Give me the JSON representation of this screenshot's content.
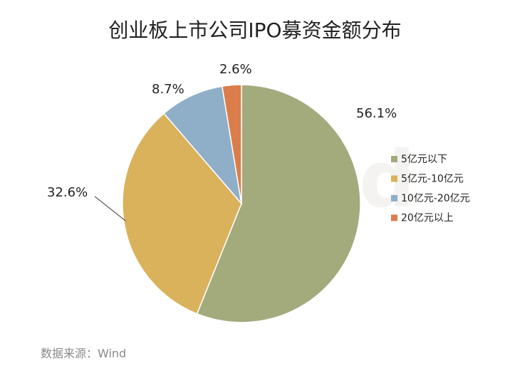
{
  "chart_data": {
    "type": "pie",
    "title": "创业板上市公司IPO募资金额分布",
    "categories": [
      "5亿元以下",
      "5亿元-10亿元",
      "10亿元-20亿元",
      "20亿元以上"
    ],
    "values": [
      56.1,
      32.6,
      8.7,
      2.6
    ],
    "value_labels": [
      "56.1%",
      "32.6%",
      "8.7%",
      "2.6%"
    ],
    "colors": [
      "#a3ab7d",
      "#d9b25b",
      "#8faec7",
      "#db7d4b"
    ],
    "legend_position": "right",
    "start": "12 o'clock",
    "direction": "clockwise"
  },
  "source": "数据来源：Wind",
  "watermark": "Win.d"
}
